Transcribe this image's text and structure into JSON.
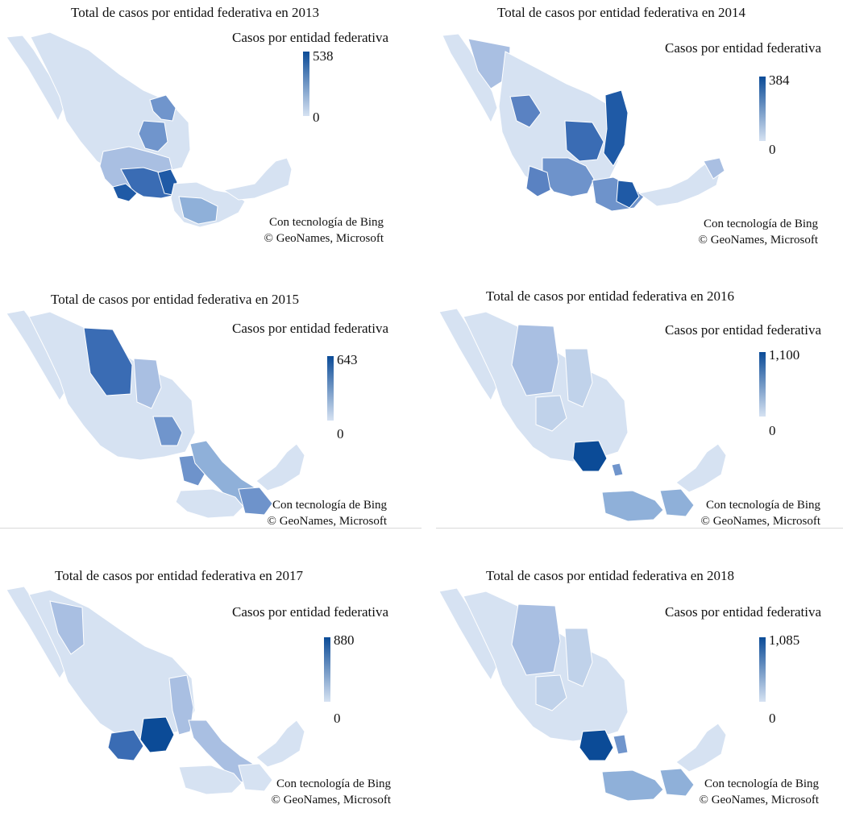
{
  "colors": {
    "light": "#d6e2f2",
    "mid": "#8fb0d9",
    "dark": "#1f5aa6",
    "darkest": "#0b4b97",
    "border": "#ffffff"
  },
  "panels": [
    {
      "title": "Total de casos por entidad federativa en 2013",
      "legend_title": "Casos por entidad federativa",
      "legend_max": "538",
      "legend_min": "0",
      "credit_line1": "Con tecnología de Bing",
      "credit_line2": "© GeoNames, Microsoft"
    },
    {
      "title": "Total de casos por entidad federativa en 2014",
      "legend_title": "Casos por entidad federativa",
      "legend_max": "384",
      "legend_min": "0",
      "credit_line1": "Con tecnología de Bing",
      "credit_line2": "© GeoNames, Microsoft"
    },
    {
      "title": "Total de casos por entidad federativa en 2015",
      "legend_title": "Casos por entidad federativa",
      "legend_max": "643",
      "legend_min": "0",
      "credit_line1": "Con tecnología de Bing",
      "credit_line2": "© GeoNames, Microsoft"
    },
    {
      "title": "Total de casos por entidad federativa en 2016",
      "legend_title": "Casos por entidad federativa",
      "legend_max": "1,100",
      "legend_min": "0",
      "credit_line1": "Con tecnología de Bing",
      "credit_line2": "© GeoNames, Microsoft"
    },
    {
      "title": "Total de casos por entidad federativa en 2017",
      "legend_title": "Casos por entidad federativa",
      "legend_max": "880",
      "legend_min": "0",
      "credit_line1": "Con tecnología de Bing",
      "credit_line2": "© GeoNames, Microsoft"
    },
    {
      "title": "Total de casos por entidad federativa en 2018",
      "legend_title": "Casos por entidad federativa",
      "legend_max": "1,085",
      "legend_min": "0",
      "credit_line1": "Con tecnología de Bing",
      "credit_line2": "© GeoNames, Microsoft"
    }
  ]
}
